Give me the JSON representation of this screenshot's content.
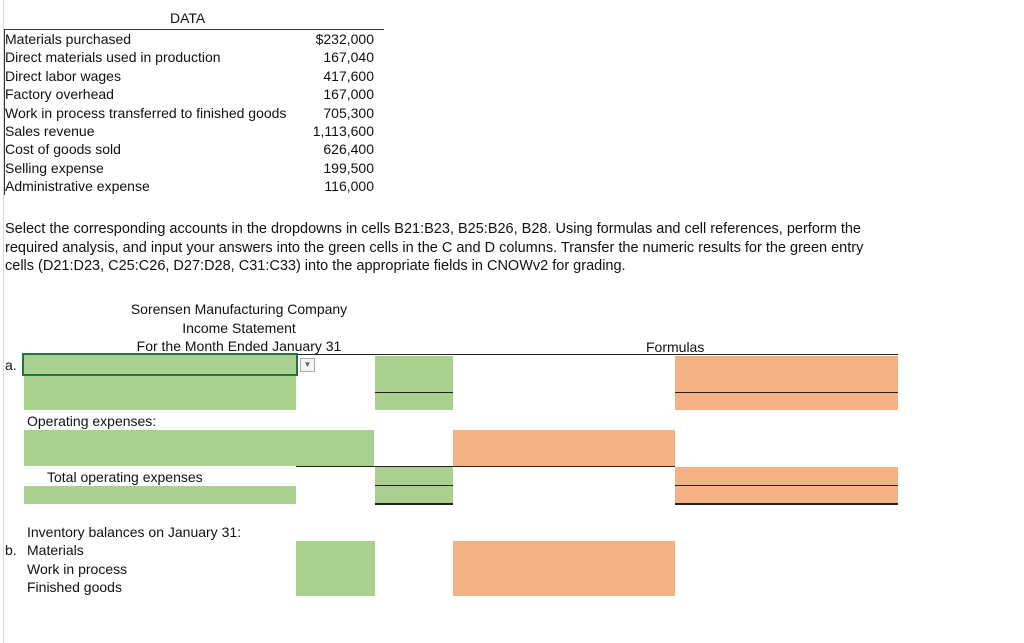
{
  "data_section": {
    "title": "DATA",
    "rows": [
      {
        "label": "Materials purchased",
        "value": "$232,000"
      },
      {
        "label": "Direct materials used in production",
        "value": "167,040"
      },
      {
        "label": "Direct labor wages",
        "value": "417,600"
      },
      {
        "label": "Factory overhead",
        "value": "167,000"
      },
      {
        "label": "Work in process transferred to finished goods",
        "value": "705,300"
      },
      {
        "label": "Sales revenue",
        "value": "1,113,600"
      },
      {
        "label": "Cost of goods sold",
        "value": "626,400"
      },
      {
        "label": "Selling expense",
        "value": "199,500"
      },
      {
        "label": "Administrative expense",
        "value": "116,000"
      }
    ]
  },
  "instructions": "Select the corresponding accounts in the dropdowns in cells B21:B23, B25:B26, B28. Using formulas and cell references, perform the required analysis, and input your answers into the green cells in the C and D columns. Transfer the numeric results for the green entry cells (D21:D23, C25:C26, D27:D28, C31:C33) into the appropriate fields in CNOWv2 for grading.",
  "statement": {
    "company": "Sorensen Manufacturing Company",
    "title": "Income Statement",
    "period": "For the Month Ended January 31",
    "formulas_header": "Formulas",
    "row_a_label": "a.",
    "operating_expenses_label": "Operating expenses:",
    "total_operating_expenses_label": "Total operating expenses",
    "inventory_heading": "Inventory balances on January 31:",
    "row_b_label": "b.",
    "materials_label": "Materials",
    "wip_label": "Work in process",
    "finished_goods_label": "Finished goods"
  },
  "colors": {
    "entry_cell": "#a9d08e",
    "formula_cell": "#f4b183",
    "selection_border": "#217346"
  },
  "icons": {
    "dropdown": "chevron-down-icon"
  }
}
